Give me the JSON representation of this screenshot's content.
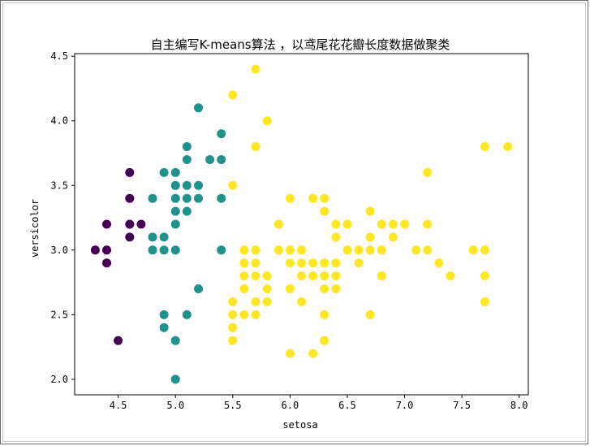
{
  "chart_data": {
    "type": "scatter",
    "title": "自主编写K-means算法 ，以鸢尾花花瓣长度数据做聚类",
    "xlabel": "setosa",
    "ylabel": "versicolor",
    "xlim": [
      4.12,
      8.08
    ],
    "ylim": [
      1.88,
      4.52
    ],
    "xticks": [
      4.5,
      5.0,
      5.5,
      6.0,
      6.5,
      7.0,
      7.5,
      8.0
    ],
    "xtick_labels": [
      "4.5",
      "5.0",
      "5.5",
      "6.0",
      "6.5",
      "7.0",
      "7.5",
      "8.0"
    ],
    "yticks": [
      2.0,
      2.5,
      3.0,
      3.5,
      4.0,
      4.5
    ],
    "ytick_labels": [
      "2.0",
      "2.5",
      "3.0",
      "3.5",
      "4.0",
      "4.5"
    ],
    "grid": false,
    "legend": "none",
    "colors": {
      "cluster_0": "#440154",
      "cluster_1": "#21918c",
      "cluster_2": "#fde725"
    },
    "series": [
      {
        "color_key": "cluster_0",
        "points": [
          [
            4.3,
            3.0
          ],
          [
            4.4,
            3.0
          ],
          [
            4.4,
            2.9
          ],
          [
            4.4,
            3.2
          ],
          [
            4.5,
            2.3
          ],
          [
            4.6,
            3.1
          ],
          [
            4.6,
            3.2
          ],
          [
            4.6,
            3.4
          ],
          [
            4.6,
            3.6
          ],
          [
            4.7,
            3.2
          ]
        ]
      },
      {
        "color_key": "cluster_1",
        "points": [
          [
            4.8,
            3.0
          ],
          [
            4.8,
            3.1
          ],
          [
            4.8,
            3.4
          ],
          [
            4.9,
            2.4
          ],
          [
            4.9,
            2.5
          ],
          [
            4.9,
            3.0
          ],
          [
            4.9,
            3.1
          ],
          [
            4.9,
            3.6
          ],
          [
            5.0,
            2.0
          ],
          [
            5.0,
            2.3
          ],
          [
            5.0,
            3.0
          ],
          [
            5.0,
            3.2
          ],
          [
            5.0,
            3.3
          ],
          [
            5.0,
            3.4
          ],
          [
            5.0,
            3.5
          ],
          [
            5.0,
            3.6
          ],
          [
            5.1,
            2.5
          ],
          [
            5.1,
            3.3
          ],
          [
            5.1,
            3.4
          ],
          [
            5.1,
            3.5
          ],
          [
            5.1,
            3.7
          ],
          [
            5.1,
            3.8
          ],
          [
            5.2,
            2.7
          ],
          [
            5.2,
            3.4
          ],
          [
            5.2,
            3.5
          ],
          [
            5.2,
            4.1
          ],
          [
            5.3,
            3.7
          ],
          [
            5.4,
            3.0
          ],
          [
            5.4,
            3.4
          ],
          [
            5.4,
            3.7
          ],
          [
            5.4,
            3.9
          ]
        ]
      },
      {
        "color_key": "cluster_2",
        "points": [
          [
            5.5,
            2.3
          ],
          [
            5.5,
            2.4
          ],
          [
            5.5,
            2.5
          ],
          [
            5.5,
            2.6
          ],
          [
            5.5,
            3.5
          ],
          [
            5.5,
            4.2
          ],
          [
            5.6,
            2.5
          ],
          [
            5.6,
            2.7
          ],
          [
            5.6,
            2.8
          ],
          [
            5.6,
            2.9
          ],
          [
            5.6,
            3.0
          ],
          [
            5.7,
            2.5
          ],
          [
            5.7,
            2.6
          ],
          [
            5.7,
            2.8
          ],
          [
            5.7,
            2.9
          ],
          [
            5.7,
            3.0
          ],
          [
            5.7,
            3.8
          ],
          [
            5.7,
            4.4
          ],
          [
            5.8,
            2.6
          ],
          [
            5.8,
            2.7
          ],
          [
            5.8,
            2.8
          ],
          [
            5.8,
            4.0
          ],
          [
            5.9,
            3.0
          ],
          [
            5.9,
            3.2
          ],
          [
            6.0,
            2.2
          ],
          [
            6.0,
            2.7
          ],
          [
            6.0,
            2.9
          ],
          [
            6.0,
            3.0
          ],
          [
            6.0,
            3.4
          ],
          [
            6.1,
            2.6
          ],
          [
            6.1,
            2.8
          ],
          [
            6.1,
            2.9
          ],
          [
            6.1,
            3.0
          ],
          [
            6.2,
            2.2
          ],
          [
            6.2,
            2.8
          ],
          [
            6.2,
            2.9
          ],
          [
            6.2,
            3.4
          ],
          [
            6.3,
            2.3
          ],
          [
            6.3,
            2.5
          ],
          [
            6.3,
            2.7
          ],
          [
            6.3,
            2.8
          ],
          [
            6.3,
            2.9
          ],
          [
            6.3,
            3.3
          ],
          [
            6.3,
            3.4
          ],
          [
            6.4,
            2.7
          ],
          [
            6.4,
            2.8
          ],
          [
            6.4,
            2.9
          ],
          [
            6.4,
            3.1
          ],
          [
            6.4,
            3.2
          ],
          [
            6.5,
            3.0
          ],
          [
            6.5,
            3.2
          ],
          [
            6.6,
            2.9
          ],
          [
            6.6,
            3.0
          ],
          [
            6.7,
            2.5
          ],
          [
            6.7,
            3.0
          ],
          [
            6.7,
            3.1
          ],
          [
            6.7,
            3.3
          ],
          [
            6.8,
            2.8
          ],
          [
            6.8,
            3.0
          ],
          [
            6.8,
            3.2
          ],
          [
            6.9,
            3.1
          ],
          [
            6.9,
            3.2
          ],
          [
            7.0,
            3.2
          ],
          [
            7.1,
            3.0
          ],
          [
            7.2,
            3.0
          ],
          [
            7.2,
            3.2
          ],
          [
            7.2,
            3.6
          ],
          [
            7.3,
            2.9
          ],
          [
            7.4,
            2.8
          ],
          [
            7.6,
            3.0
          ],
          [
            7.7,
            2.6
          ],
          [
            7.7,
            2.8
          ],
          [
            7.7,
            3.0
          ],
          [
            7.7,
            3.8
          ],
          [
            7.9,
            3.8
          ]
        ]
      }
    ]
  }
}
